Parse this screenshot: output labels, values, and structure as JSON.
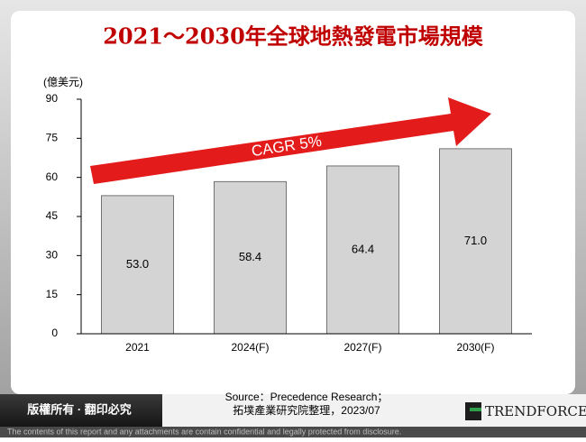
{
  "chart_data": {
    "type": "bar",
    "title": "2021～2030年全球地熱發電市場規模",
    "y_label": "(億美元)",
    "categories": [
      "2021",
      "2024(F)",
      "2027(F)",
      "2030(F)"
    ],
    "values": [
      53.0,
      58.4,
      64.4,
      71.0
    ],
    "value_labels": [
      "53.0",
      "58.4",
      "64.4",
      "71.0"
    ],
    "color": "#d4d4d4",
    "ylim": [
      0,
      90
    ],
    "yticks": [
      0,
      15,
      30,
      45,
      60,
      75,
      90
    ],
    "grid": false,
    "annotation": "CAGR 5%"
  },
  "source": [
    "Source：Precedence Research；",
    "拓墣產業研究院整理，2023/07"
  ],
  "footer": {
    "copyright": "版權所有 · 翻印必究",
    "brand": "TRENDFORCE",
    "disclaimer": "The contents of this report and any attachments are contain confidential and legally protected from disclosure."
  }
}
